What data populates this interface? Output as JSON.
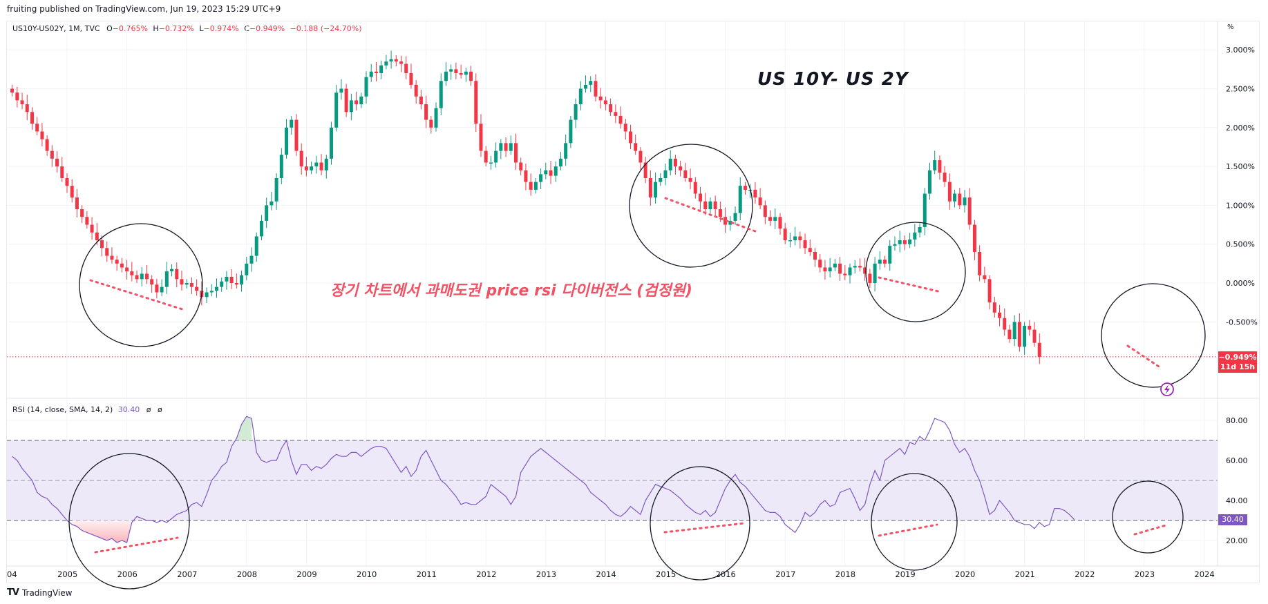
{
  "header": {
    "published": "fruiting published on TradingView.com, Jun 19, 2023 15:29 UTC+9"
  },
  "legend": {
    "symbol": "US10Y-US02Y, 1M, TVC",
    "open_label": "O",
    "open": "−0.765%",
    "high_label": "H",
    "high": "−0.732%",
    "low_label": "L",
    "low": "−0.974%",
    "close_label": "C",
    "close": "−0.949%",
    "change": "−0.188 (−24.70%)"
  },
  "rsi_legend": {
    "label": "RSI (14, close, SMA, 14, 2)",
    "value": "30.40",
    "sym1": "ø",
    "sym2": "ø"
  },
  "annotations": {
    "title": "US 10Y- US 2Y",
    "korean_note": "장기 차트에서 과매도권 price rsi 다이버전스 (검정원)"
  },
  "price_axis": {
    "unit": "%",
    "ticks": [
      "3.000%",
      "2.500%",
      "2.000%",
      "1.500%",
      "1.000%",
      "0.500%",
      "0.000%",
      "-0.500%"
    ],
    "current_price": "−0.949%",
    "countdown": "11d 15h"
  },
  "rsi_axis": {
    "ticks": [
      "80.00",
      "60.00",
      "40.00",
      "20.00"
    ],
    "current_value": "30.40"
  },
  "time_axis": {
    "ticks": [
      "04",
      "2005",
      "2006",
      "2007",
      "2008",
      "2009",
      "2010",
      "2011",
      "2012",
      "2013",
      "2014",
      "2015",
      "2016",
      "2017",
      "2018",
      "2019",
      "2020",
      "2021",
      "2022",
      "2023",
      "2024"
    ]
  },
  "footer": {
    "logo": "TV",
    "brand": "TradingView"
  },
  "colors": {
    "up": "#089981",
    "down": "#f23645",
    "rsi_line": "#7e57c2",
    "rsi_band": "#ede9f8",
    "divergence_dots": "#f05365",
    "circle": "#131722"
  },
  "chart_data": [
    {
      "type": "candlestick",
      "title": "US10Y-US02Y, 1M, TVC",
      "xlabel": "",
      "ylabel": "%",
      "ylim": [
        -1.2,
        3.3
      ],
      "x_start": "2004-02",
      "interval": "1M",
      "closes": [
        2.45,
        2.35,
        2.3,
        2.2,
        2.05,
        1.95,
        1.85,
        1.7,
        1.6,
        1.5,
        1.35,
        1.25,
        1.1,
        0.95,
        0.85,
        0.75,
        0.65,
        0.55,
        0.45,
        0.35,
        0.3,
        0.25,
        0.2,
        0.15,
        0.1,
        0.05,
        0.12,
        0.05,
        -0.02,
        -0.12,
        -0.05,
        0.15,
        0.18,
        0.05,
        -0.02,
        0.0,
        -0.05,
        -0.1,
        -0.18,
        -0.12,
        -0.1,
        -0.05,
        0.02,
        0.08,
        0.0,
        -0.02,
        0.1,
        0.25,
        0.35,
        0.6,
        0.8,
        1.0,
        1.05,
        1.35,
        1.65,
        2.0,
        2.1,
        1.7,
        1.5,
        1.45,
        1.5,
        1.55,
        1.45,
        1.6,
        2.0,
        2.45,
        2.5,
        2.2,
        2.35,
        2.3,
        2.4,
        2.65,
        2.72,
        2.7,
        2.8,
        2.85,
        2.88,
        2.85,
        2.82,
        2.7,
        2.55,
        2.4,
        2.3,
        2.1,
        2.0,
        2.25,
        2.6,
        2.72,
        2.75,
        2.7,
        2.68,
        2.72,
        2.6,
        2.05,
        1.7,
        1.55,
        1.55,
        1.7,
        1.8,
        1.7,
        1.8,
        1.55,
        1.45,
        1.3,
        1.2,
        1.3,
        1.4,
        1.45,
        1.38,
        1.5,
        1.6,
        1.8,
        2.1,
        2.3,
        2.5,
        2.55,
        2.6,
        2.4,
        2.35,
        2.3,
        2.2,
        2.15,
        2.05,
        1.95,
        1.8,
        1.7,
        1.55,
        1.35,
        1.1,
        1.3,
        1.35,
        1.45,
        1.6,
        1.5,
        1.45,
        1.35,
        1.3,
        1.15,
        1.05,
        0.95,
        1.05,
        0.95,
        0.85,
        0.75,
        0.8,
        0.9,
        1.25,
        1.2,
        1.2,
        1.1,
        1.0,
        0.85,
        0.8,
        0.85,
        0.7,
        0.55,
        0.55,
        0.6,
        0.55,
        0.45,
        0.4,
        0.3,
        0.2,
        0.15,
        0.2,
        0.25,
        0.12,
        0.1,
        0.2,
        0.22,
        0.2,
        0.12,
        0.0,
        0.25,
        0.3,
        0.25,
        0.48,
        0.5,
        0.55,
        0.5,
        0.56,
        0.65,
        0.72,
        1.15,
        1.45,
        1.58,
        1.42,
        1.3,
        1.05,
        1.15,
        1.0,
        1.1,
        0.75,
        0.4,
        0.1,
        0.05,
        -0.25,
        -0.38,
        -0.45,
        -0.6,
        -0.72,
        -0.5,
        -0.82,
        -0.55,
        -0.6,
        -0.77,
        -0.95
      ],
      "series_note": "approximate monthly closes read from price pane"
    },
    {
      "type": "line",
      "title": "RSI (14, close, SMA, 14, 2)",
      "ylim": [
        12,
        86
      ],
      "bands": {
        "upper": 70,
        "middle": 50,
        "lower": 30
      },
      "x_start": "2004-02",
      "interval": "1M",
      "values": [
        62,
        60,
        56,
        53,
        50,
        44,
        42,
        41,
        38,
        36,
        33,
        30,
        28,
        27,
        25,
        24,
        23,
        22,
        21,
        20,
        21,
        19,
        20,
        19,
        29,
        32,
        31,
        30,
        30,
        29,
        30,
        29,
        31,
        33,
        34,
        35,
        38,
        39,
        37,
        43,
        50,
        53,
        57,
        59,
        67,
        71,
        78,
        82,
        81,
        64,
        60,
        59,
        60,
        60,
        66,
        70,
        60,
        53,
        58,
        58,
        55,
        57,
        56,
        58,
        61,
        63,
        62,
        62,
        64,
        64,
        62,
        64,
        66,
        67,
        67,
        66,
        62,
        58,
        54,
        57,
        52,
        55,
        62,
        65,
        60,
        55,
        50,
        48,
        45,
        42,
        38,
        39,
        38,
        38,
        40,
        42,
        48,
        46,
        44,
        42,
        38,
        42,
        54,
        58,
        62,
        64,
        66,
        64,
        62,
        60,
        58,
        56,
        54,
        52,
        50,
        48,
        44,
        42,
        40,
        38,
        35,
        33,
        32,
        34,
        37,
        35,
        33,
        40,
        44,
        48,
        47,
        46,
        45,
        43,
        41,
        38,
        36,
        34,
        33,
        35,
        32,
        34,
        40,
        46,
        50,
        53,
        49,
        47,
        44,
        41,
        38,
        35,
        34,
        34,
        32,
        28,
        26,
        24,
        28,
        34,
        32,
        34,
        38,
        40,
        37,
        38,
        44,
        45,
        46,
        41,
        35,
        38,
        48,
        55,
        50,
        60,
        62,
        64,
        66,
        63,
        69,
        68,
        72,
        70,
        75,
        81,
        80,
        79,
        75,
        68,
        64,
        66,
        62,
        55,
        50,
        42,
        33,
        35,
        40,
        37,
        34,
        30,
        29,
        28,
        28,
        26,
        29,
        27,
        28,
        36,
        36,
        35,
        33,
        30.4
      ],
      "current": 30.4,
      "xlabel": "",
      "ylabel": ""
    }
  ]
}
